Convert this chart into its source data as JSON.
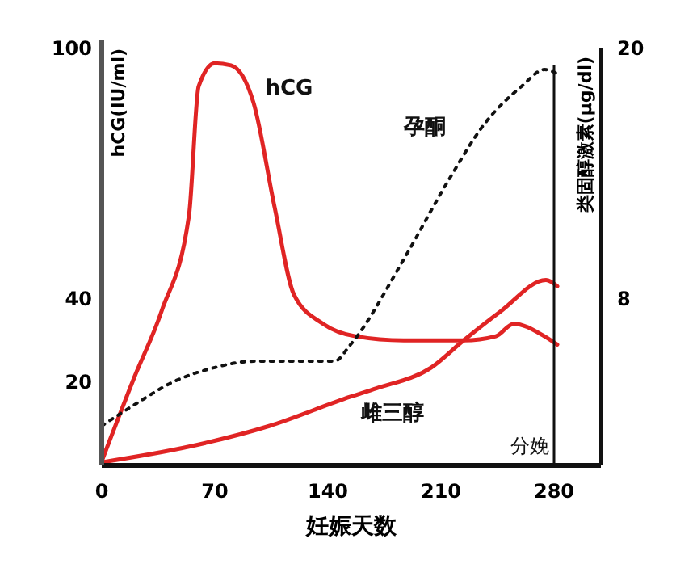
{
  "chart_data": {
    "type": "line",
    "xlabel": "妊娠天数",
    "ylabel": "hCG(IU/ml)",
    "y2label": "类固醇激素(μg/dl)",
    "x": [
      0,
      20,
      37,
      54,
      60,
      70,
      80,
      94,
      107,
      119,
      137,
      157,
      187,
      224,
      244,
      255,
      274,
      282
    ],
    "xlim": [
      0,
      309
    ],
    "xticks": [
      0,
      70,
      140,
      210,
      280
    ],
    "ylim": [
      0,
      102
    ],
    "yticks": [
      20,
      40,
      100
    ],
    "y2lim": [
      0,
      20.4
    ],
    "y2ticks": [
      8,
      20
    ],
    "series": [
      {
        "name": "hCG",
        "color": "#e02424",
        "values": [
          1,
          21,
          37,
          60,
          91,
          96.5,
          96,
          87,
          62,
          41,
          34,
          31,
          30,
          30,
          31,
          34,
          31,
          29
        ]
      },
      {
        "name": "孕酮",
        "color": "#111111",
        "axis": "y2",
        "line_style": "dotted",
        "x": [
          0,
          20,
          44,
          70,
          94,
          144,
          154,
          187,
          214,
          237,
          260,
          274,
          282
        ],
        "values": [
          1.9,
          2.9,
          4.0,
          4.7,
          5.0,
          5.0,
          5.8,
          9.9,
          13.6,
          16.4,
          18.2,
          19.0,
          18.8
        ]
      },
      {
        "name": "雌三醇",
        "color": "#e02424",
        "axis": "y2",
        "x": [
          0,
          54,
          104,
          154,
          170,
          204,
          224,
          247,
          275,
          282
        ],
        "values": [
          0.15,
          0.9,
          1.9,
          3.3,
          3.7,
          4.7,
          6.0,
          7.4,
          8.9,
          8.6
        ]
      }
    ],
    "ref_lines": [
      {
        "axis": "x",
        "value": 280,
        "label": "分娩",
        "color": "#111111"
      }
    ],
    "marker": "none",
    "line_style": "solid",
    "grid": false
  }
}
